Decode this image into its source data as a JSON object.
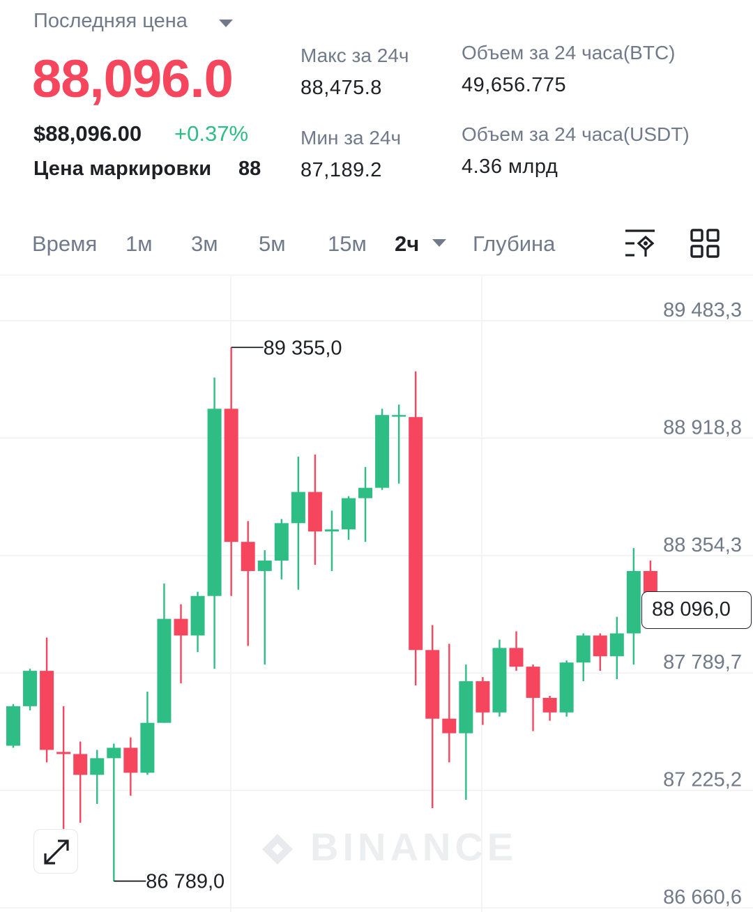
{
  "header": {
    "last_price_label": "Последняя цена",
    "last_price": "88,096.0",
    "usd_price": "$88,096.00",
    "change_pct": "+0.37%",
    "mark_price_label": "Цена маркировки",
    "mark_price_value": "88",
    "high_24h_label": "Макс за 24ч",
    "high_24h": "88,475.8",
    "low_24h_label": "Мин за 24ч",
    "low_24h": "87,189.2",
    "vol_btc_label": "Объем за 24 часа(BTC)",
    "vol_btc": "49,656.775",
    "vol_usdt_label": "Объем за 24 часа(USDT)",
    "vol_usdt": "4.36 млрд"
  },
  "tabs": {
    "time": "Время",
    "m1": "1м",
    "m3": "3м",
    "m5": "5м",
    "m15": "15м",
    "h2": "2ч",
    "depth": "Глубина"
  },
  "colors": {
    "up": "#2ebd85",
    "down": "#f6465d",
    "grid": "#eef0f2",
    "axis_text": "#707a8a"
  },
  "icons": {
    "indicator": "indicator-settings-icon",
    "layout": "grid-layout-icon",
    "expand": "expand-arrows-icon"
  },
  "chart_data": {
    "type": "candlestick",
    "y_ticks": [
      "89 483,3",
      "88 918,8",
      "88 354,3",
      "87 789,7",
      "87 225,2",
      "86 660,6"
    ],
    "y_tick_values": [
      89483.3,
      88918.8,
      88354.3,
      87789.7,
      87225.2,
      86660.6
    ],
    "high_marker": "89 355,0",
    "low_marker": "86 789,0",
    "current_price_label": "88 096,0",
    "watermark": "BINANCE",
    "candles": [
      {
        "o": 87440,
        "c": 87630,
        "h": 87640,
        "l": 87430
      },
      {
        "o": 87630,
        "c": 87800,
        "h": 87810,
        "l": 87610
      },
      {
        "o": 87800,
        "c": 87420,
        "h": 87960,
        "l": 87360
      },
      {
        "o": 87410,
        "c": 87400,
        "h": 87630,
        "l": 87040
      },
      {
        "o": 87400,
        "c": 87300,
        "h": 87460,
        "l": 87070
      },
      {
        "o": 87300,
        "c": 87380,
        "h": 87420,
        "l": 87160
      },
      {
        "o": 87380,
        "c": 87430,
        "h": 87450,
        "l": 86789
      },
      {
        "o": 87430,
        "c": 87310,
        "h": 87480,
        "l": 87200
      },
      {
        "o": 87310,
        "c": 87550,
        "h": 87700,
        "l": 87300
      },
      {
        "o": 87550,
        "c": 88050,
        "h": 88220,
        "l": 87550
      },
      {
        "o": 88050,
        "c": 87970,
        "h": 88120,
        "l": 87740
      },
      {
        "o": 87970,
        "c": 88160,
        "h": 88180,
        "l": 87890
      },
      {
        "o": 88160,
        "c": 89060,
        "h": 89210,
        "l": 87810
      },
      {
        "o": 89060,
        "c": 88420,
        "h": 89355,
        "l": 88160
      },
      {
        "o": 88420,
        "c": 88280,
        "h": 88520,
        "l": 87920
      },
      {
        "o": 88280,
        "c": 88330,
        "h": 88380,
        "l": 87830
      },
      {
        "o": 88330,
        "c": 88510,
        "h": 88530,
        "l": 88240
      },
      {
        "o": 88510,
        "c": 88660,
        "h": 88830,
        "l": 88190
      },
      {
        "o": 88660,
        "c": 88470,
        "h": 88840,
        "l": 88310
      },
      {
        "o": 88470,
        "c": 88480,
        "h": 88570,
        "l": 88280
      },
      {
        "o": 88480,
        "c": 88630,
        "h": 88640,
        "l": 88430
      },
      {
        "o": 88630,
        "c": 88680,
        "h": 88780,
        "l": 88420
      },
      {
        "o": 88680,
        "c": 89030,
        "h": 89060,
        "l": 88670
      },
      {
        "o": 89030,
        "c": 89030,
        "h": 89080,
        "l": 88700
      },
      {
        "o": 89020,
        "c": 87900,
        "h": 89240,
        "l": 87730
      },
      {
        "o": 87900,
        "c": 87570,
        "h": 88020,
        "l": 87140
      },
      {
        "o": 87570,
        "c": 87500,
        "h": 87930,
        "l": 87360
      },
      {
        "o": 87500,
        "c": 87750,
        "h": 87830,
        "l": 87180
      },
      {
        "o": 87750,
        "c": 87600,
        "h": 87770,
        "l": 87540
      },
      {
        "o": 87600,
        "c": 87910,
        "h": 87950,
        "l": 87580
      },
      {
        "o": 87910,
        "c": 87820,
        "h": 87990,
        "l": 87800
      },
      {
        "o": 87820,
        "c": 87670,
        "h": 87830,
        "l": 87510
      },
      {
        "o": 87670,
        "c": 87600,
        "h": 87680,
        "l": 87560
      },
      {
        "o": 87600,
        "c": 87840,
        "h": 87850,
        "l": 87580
      },
      {
        "o": 87840,
        "c": 87970,
        "h": 87980,
        "l": 87750
      },
      {
        "o": 87970,
        "c": 87870,
        "h": 87980,
        "l": 87800
      },
      {
        "o": 87870,
        "c": 87980,
        "h": 88060,
        "l": 87760
      },
      {
        "o": 87980,
        "c": 88280,
        "h": 88390,
        "l": 87830
      },
      {
        "o": 88280,
        "c": 88096,
        "h": 88330,
        "l": 88050
      }
    ]
  }
}
